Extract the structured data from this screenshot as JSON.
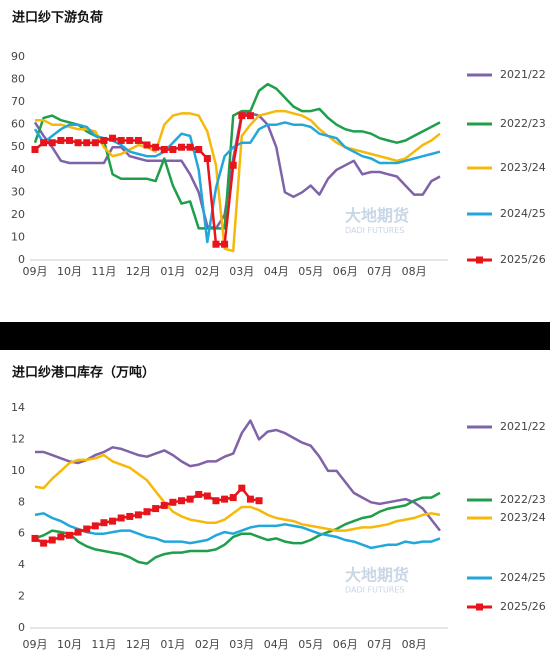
{
  "chart_data": [
    {
      "type": "line",
      "title": "进口纱下游负荷",
      "legend": "right",
      "grid": false,
      "watermark": {
        "cn": "大地期货",
        "en": "DADI FUTURES"
      },
      "categories": [
        "09月",
        null,
        null,
        null,
        "10月",
        null,
        null,
        null,
        "11月",
        null,
        null,
        null,
        "12月",
        null,
        null,
        null,
        "01月",
        null,
        null,
        null,
        "02月",
        null,
        null,
        null,
        "03月",
        null,
        null,
        null,
        "04月",
        null,
        null,
        null,
        "05月",
        null,
        null,
        null,
        "06月",
        null,
        null,
        null,
        "07月",
        null,
        null,
        null,
        "08月",
        null,
        null,
        null
      ],
      "ylim": [
        0,
        90
      ],
      "yticks": [
        0,
        10,
        20,
        30,
        40,
        50,
        60,
        70,
        80,
        90
      ],
      "series": [
        {
          "name": "2021/22",
          "color": "#7f62a8",
          "values": [
            61,
            55,
            50,
            44,
            43,
            43,
            43,
            43,
            43,
            50,
            50,
            46,
            45,
            44,
            44,
            44,
            44,
            44,
            38,
            30,
            15,
            14,
            20,
            45,
            65,
            65,
            64,
            60,
            50,
            30,
            28,
            30,
            33,
            29,
            36,
            40,
            42,
            44,
            38,
            39,
            39,
            38,
            37,
            33,
            29,
            29,
            35,
            37
          ]
        },
        {
          "name": "2022/23",
          "color": "#1f9e4b",
          "values": [
            52,
            63,
            64,
            62,
            61,
            60,
            57,
            55,
            53,
            38,
            36,
            36,
            36,
            36,
            35,
            45,
            33,
            25,
            26,
            14,
            14,
            14,
            14,
            64,
            66,
            66,
            75,
            78,
            76,
            72,
            68,
            66,
            66,
            67,
            63,
            60,
            58,
            57,
            57,
            56,
            54,
            53,
            52,
            53,
            55,
            57,
            59,
            61
          ]
        },
        {
          "name": "2023/24",
          "color": "#f6b90a",
          "values": [
            62,
            62,
            60,
            60,
            59,
            58,
            58,
            57,
            50,
            46,
            47,
            49,
            51,
            50,
            48,
            60,
            64,
            65,
            65,
            64,
            57,
            42,
            5,
            4,
            55,
            60,
            64,
            65,
            66,
            66,
            65,
            64,
            62,
            58,
            55,
            52,
            50,
            49,
            48,
            47,
            46,
            45,
            44,
            45,
            48,
            51,
            53,
            56
          ]
        },
        {
          "name": "2024/25",
          "color": "#22a7db",
          "values": [
            58,
            52,
            55,
            58,
            60,
            60,
            59,
            55,
            54,
            53,
            51,
            48,
            47,
            46,
            46,
            48,
            52,
            56,
            55,
            40,
            8,
            32,
            46,
            50,
            52,
            52,
            58,
            60,
            60,
            61,
            60,
            60,
            59,
            56,
            55,
            54,
            50,
            48,
            46,
            45,
            43,
            43,
            43,
            44,
            45,
            46,
            47,
            48
          ]
        },
        {
          "name": "2025/26",
          "color": "#e8141b",
          "marker": "square",
          "values": [
            49,
            52,
            52,
            53,
            53,
            52,
            52,
            52,
            53,
            54,
            53,
            53,
            53,
            51,
            50,
            49,
            49,
            50,
            50,
            49,
            45,
            7,
            7,
            42,
            64,
            64,
            null,
            null,
            null,
            null,
            null,
            null,
            null,
            null,
            null,
            null,
            null,
            null,
            null,
            null,
            null,
            null,
            null,
            null,
            null,
            null,
            null,
            null
          ]
        }
      ]
    },
    {
      "type": "line",
      "title": "进口纱港口库存（万吨）",
      "legend": "right",
      "grid": false,
      "watermark": {
        "cn": "大地期货",
        "en": "DADI FUTURES"
      },
      "categories": [
        "09月",
        null,
        null,
        null,
        "10月",
        null,
        null,
        null,
        "11月",
        null,
        null,
        null,
        "12月",
        null,
        null,
        null,
        "01月",
        null,
        null,
        null,
        "02月",
        null,
        null,
        null,
        "03月",
        null,
        null,
        null,
        "04月",
        null,
        null,
        null,
        "05月",
        null,
        null,
        null,
        "06月",
        null,
        null,
        null,
        "07月",
        null,
        null,
        null,
        "08月",
        null,
        null,
        null
      ],
      "ylim": [
        0,
        14
      ],
      "yticks": [
        0,
        2,
        4,
        6,
        8,
        10,
        12,
        14
      ],
      "series": [
        {
          "name": "2021/22",
          "color": "#7f62a8",
          "values": [
            11.2,
            11.2,
            11.0,
            10.8,
            10.6,
            10.5,
            10.7,
            11.0,
            11.2,
            11.5,
            11.4,
            11.2,
            11.0,
            10.9,
            11.1,
            11.3,
            11.0,
            10.6,
            10.3,
            10.4,
            10.6,
            10.6,
            10.9,
            11.1,
            12.4,
            13.2,
            12.0,
            12.5,
            12.6,
            12.4,
            12.1,
            11.8,
            11.6,
            10.9,
            10.0,
            10.0,
            9.3,
            8.6,
            8.3,
            8.0,
            7.9,
            8.0,
            8.1,
            8.2,
            8.0,
            7.6,
            6.9,
            6.2
          ]
        },
        {
          "name": "2022/23",
          "color": "#1f9e4b",
          "values": [
            5.7,
            5.9,
            6.2,
            6.1,
            6.0,
            5.5,
            5.2,
            5.0,
            4.9,
            4.8,
            4.7,
            4.5,
            4.2,
            4.1,
            4.5,
            4.7,
            4.8,
            4.8,
            4.9,
            4.9,
            4.9,
            5.0,
            5.3,
            5.8,
            6.0,
            6.0,
            5.8,
            5.6,
            5.7,
            5.5,
            5.4,
            5.4,
            5.6,
            5.9,
            6.1,
            6.3,
            6.6,
            6.8,
            7.0,
            7.1,
            7.4,
            7.6,
            7.7,
            7.8,
            8.1,
            8.3,
            8.3,
            8.6
          ]
        },
        {
          "name": "2023/24",
          "color": "#f6b90a",
          "values": [
            9.0,
            8.9,
            9.5,
            10.0,
            10.5,
            10.7,
            10.7,
            10.8,
            11.0,
            10.6,
            10.4,
            10.2,
            9.8,
            9.4,
            8.7,
            8.0,
            7.4,
            7.1,
            6.9,
            6.8,
            6.7,
            6.7,
            6.9,
            7.3,
            7.7,
            7.7,
            7.5,
            7.2,
            7.0,
            6.9,
            6.8,
            6.6,
            6.5,
            6.4,
            6.3,
            6.2,
            6.2,
            6.3,
            6.4,
            6.4,
            6.5,
            6.6,
            6.8,
            6.9,
            7.0,
            7.2,
            7.3,
            7.2
          ]
        },
        {
          "name": "2024/25",
          "color": "#22a7db",
          "values": [
            7.2,
            7.3,
            7.0,
            6.8,
            6.5,
            6.3,
            6.1,
            6.0,
            6.0,
            6.1,
            6.2,
            6.2,
            6.0,
            5.8,
            5.7,
            5.5,
            5.5,
            5.5,
            5.4,
            5.5,
            5.6,
            5.9,
            6.1,
            6.0,
            6.2,
            6.4,
            6.5,
            6.5,
            6.5,
            6.6,
            6.5,
            6.4,
            6.2,
            6.0,
            5.9,
            5.8,
            5.6,
            5.5,
            5.3,
            5.1,
            5.2,
            5.3,
            5.3,
            5.5,
            5.4,
            5.5,
            5.5,
            5.7
          ]
        },
        {
          "name": "2025/26",
          "color": "#e8141b",
          "marker": "square",
          "values": [
            5.7,
            5.4,
            5.6,
            5.8,
            5.9,
            6.1,
            6.3,
            6.5,
            6.7,
            6.8,
            7.0,
            7.1,
            7.2,
            7.4,
            7.6,
            7.8,
            8.0,
            8.1,
            8.2,
            8.5,
            8.4,
            8.1,
            8.2,
            8.3,
            8.9,
            8.2,
            8.1,
            null,
            null,
            null,
            null,
            null,
            null,
            null,
            null,
            null,
            null,
            null,
            null,
            null,
            null,
            null,
            null,
            null,
            null,
            null,
            null,
            null
          ]
        }
      ]
    }
  ]
}
